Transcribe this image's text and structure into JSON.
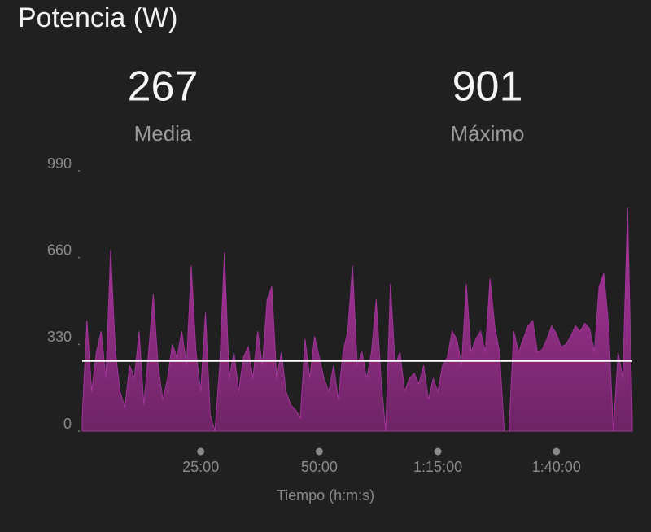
{
  "chart_data": {
    "type": "area",
    "title": "Potencia (W)",
    "stats": [
      {
        "value": 267,
        "label": "Media"
      },
      {
        "value": 901,
        "label": "Máximo"
      }
    ],
    "x_label": "Tiempo (h:m:s)",
    "x": [
      0,
      1,
      2,
      3,
      4,
      5,
      6,
      7,
      8,
      9,
      10,
      11,
      12,
      13,
      14,
      15,
      16,
      17,
      18,
      19,
      20,
      21,
      22,
      23,
      24,
      25,
      26,
      27,
      28,
      29,
      30,
      31,
      32,
      33,
      34,
      35,
      36,
      37,
      38,
      39,
      40,
      41,
      42,
      43,
      44,
      45,
      46,
      47,
      48,
      49,
      50,
      51,
      52,
      53,
      54,
      55,
      56,
      57,
      58,
      59,
      60,
      61,
      62,
      63,
      64,
      65,
      66,
      67,
      68,
      69,
      70,
      71,
      72,
      73,
      74,
      75,
      76,
      77,
      78,
      79,
      80,
      81,
      82,
      83,
      84,
      85,
      86,
      87,
      88,
      89,
      90,
      91,
      92,
      93,
      94,
      95,
      96,
      97,
      98,
      99,
      100,
      101,
      102,
      103,
      104,
      105,
      106,
      107,
      108,
      109,
      110,
      111,
      112,
      113,
      114,
      115,
      116
    ],
    "series": [
      {
        "name": "Potencia",
        "color": "#a3339c",
        "values": [
          50,
          420,
          150,
          300,
          380,
          200,
          690,
          300,
          150,
          90,
          250,
          200,
          380,
          100,
          300,
          520,
          250,
          120,
          200,
          330,
          280,
          380,
          250,
          630,
          300,
          150,
          450,
          60,
          0,
          250,
          680,
          200,
          300,
          150,
          280,
          320,
          200,
          380,
          250,
          500,
          550,
          200,
          300,
          150,
          100,
          80,
          50,
          350,
          200,
          360,
          280,
          200,
          150,
          250,
          120,
          300,
          380,
          630,
          250,
          300,
          200,
          300,
          500,
          200,
          0,
          560,
          250,
          300,
          150,
          200,
          220,
          180,
          250,
          120,
          200,
          150,
          250,
          280,
          380,
          350,
          250,
          560,
          300,
          350,
          380,
          300,
          580,
          400,
          300,
          0,
          0,
          380,
          300,
          350,
          400,
          420,
          300,
          310,
          350,
          400,
          370,
          320,
          330,
          360,
          400,
          380,
          410,
          390,
          300,
          550,
          600,
          400,
          0,
          300,
          200,
          850,
          40
        ]
      }
    ],
    "xlim": [
      0,
      116
    ],
    "xticks": [
      {
        "value": 25,
        "label": "25:00"
      },
      {
        "value": 50,
        "label": "50:00"
      },
      {
        "value": 75,
        "label": "1:15:00"
      },
      {
        "value": 100,
        "label": "1:40:00"
      }
    ],
    "ylim": [
      0,
      990
    ],
    "yticks": [
      0,
      330,
      660,
      990
    ]
  }
}
